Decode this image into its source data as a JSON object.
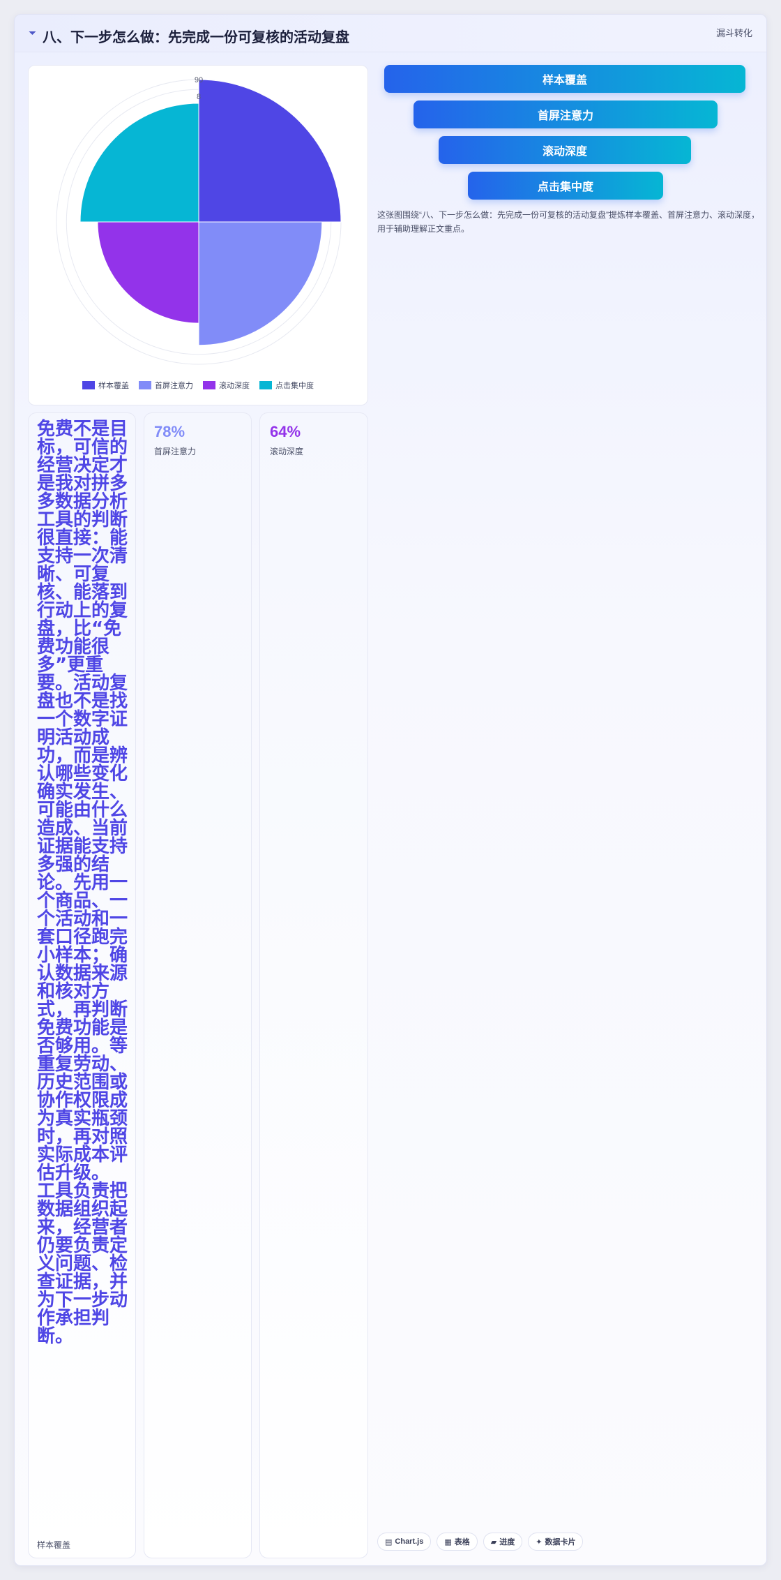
{
  "header": {
    "icon": "funnel-icon",
    "title": "八、下一步怎么做：先完成一份可复核的活动复盘",
    "tag": "漏斗转化"
  },
  "chart_data": {
    "type": "polar-area",
    "categories": [
      "样本覆盖",
      "首屏注意力",
      "滚动深度",
      "点击集中度"
    ],
    "values": [
      90,
      78,
      64,
      75
    ],
    "colors": [
      "#4f46e5",
      "#818cf8",
      "#9333ea",
      "#06b6d4"
    ],
    "rlim": [
      0,
      90
    ],
    "tick_labels_visible": [
      "90",
      "8"
    ],
    "legend_position": "bottom"
  },
  "funnel": {
    "steps": [
      "样本覆盖",
      "首屏注意力",
      "滚动深度",
      "点击集中度"
    ],
    "caption": "这张图围绕“八、下一步怎么做：先完成一份可复核的活动复盘”提炼样本覆盖、首屏注意力、滚动深度，用于辅助理解正文重点。"
  },
  "cards": {
    "story": {
      "text": "免费不是目标，可信的经营决定才是我对拼多多数据分析工具的判断很直接：能支持一次清晰、可复核、能落到行动上的复盘，比“免费功能很多”更重要。活动复盘也不是找一个数字证明活动成功，而是辨认哪些变化确实发生、可能由什么造成、当前证据能支持多强的结论。先用一个商品、一个活动和一套口径跑完小样本；确认数据来源和核对方式，再判断免费功能是否够用。等重复劳动、历史范围或协作权限成为真实瓶颈时，再对照实际成本评估升级。 工具负责把数据组织起来，经营者仍要负责定义问题、检查证据，并为下一步动作承担判断。",
      "label": "样本覆盖"
    },
    "metric1": {
      "value": "78%",
      "label": "首屏注意力",
      "color": "#818cf8"
    },
    "metric2": {
      "value": "64%",
      "label": "滚动深度",
      "color": "#9333ea"
    }
  },
  "chips": [
    {
      "icon": "chart-icon",
      "label": "Chart.js"
    },
    {
      "icon": "table-icon",
      "label": "表格"
    },
    {
      "icon": "progress-icon",
      "label": "进度"
    },
    {
      "icon": "card-icon",
      "label": "数据卡片"
    }
  ]
}
